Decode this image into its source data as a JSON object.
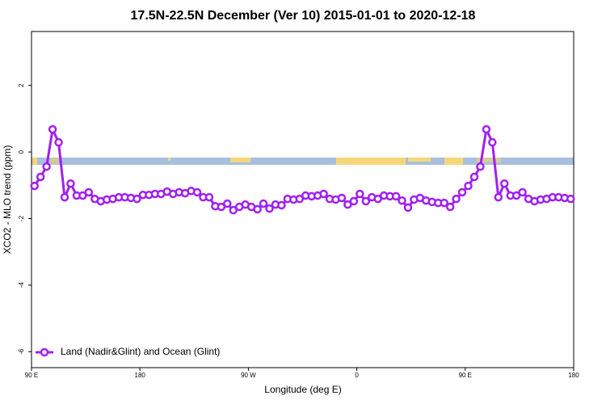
{
  "chart_data": {
    "type": "line",
    "title": "17.5N-22.5N December (Ver 10)   2015-01-01 to 2020-12-18",
    "x_label": "Longitude (deg E)",
    "y_label": "XCO2 - MLO trend (ppm)",
    "xlim": [
      90,
      540
    ],
    "ylim": [
      -6.48,
      3.62
    ],
    "xticks": [
      {
        "value": 90,
        "label": "90 E"
      },
      {
        "value": 180,
        "label": "180"
      },
      {
        "value": 270,
        "label": "90 W"
      },
      {
        "value": 360,
        "label": "0"
      },
      {
        "value": 450,
        "label": "90 E"
      },
      {
        "value": 540,
        "label": "180"
      }
    ],
    "yticks": [
      2,
      0,
      -2,
      -4,
      -6
    ],
    "legend": "bottom-left",
    "x": [
      92.5,
      97.5,
      102.5,
      107.5,
      112.5,
      117.5,
      122.5,
      127.5,
      132.5,
      137.5,
      142.5,
      147.5,
      152.5,
      157.5,
      162.5,
      167.5,
      172.5,
      177.5,
      182.5,
      187.5,
      192.5,
      197.5,
      202.5,
      207.5,
      212.5,
      217.5,
      222.5,
      227.5,
      232.5,
      237.5,
      242.5,
      247.5,
      252.5,
      257.5,
      262.5,
      267.5,
      272.5,
      277.5,
      282.5,
      287.5,
      292.5,
      297.5,
      302.5,
      307.5,
      312.5,
      317.5,
      322.5,
      327.5,
      332.5,
      337.5,
      342.5,
      347.5,
      352.5,
      357.5,
      362.5,
      367.5,
      372.5,
      377.5,
      382.5,
      387.5,
      392.5,
      397.5,
      402.5,
      407.5,
      412.5,
      417.5,
      422.5,
      427.5,
      432.5,
      437.5,
      442.5,
      447.5,
      452.5,
      457.5,
      462.5,
      467.5,
      472.5,
      477.5,
      482.5,
      487.5,
      492.5,
      497.5,
      502.5,
      507.5,
      512.5,
      517.5,
      522.5,
      527.5,
      532.5,
      537.5
    ],
    "series": [
      {
        "name": "Land (Nadir&Glint) and Ocean (Glint)",
        "color": "#a020f0",
        "values": [
          -1.02,
          -0.75,
          -0.44,
          0.68,
          0.29,
          -1.36,
          -0.95,
          -1.31,
          -1.31,
          -1.21,
          -1.41,
          -1.48,
          -1.43,
          -1.41,
          -1.36,
          -1.36,
          -1.38,
          -1.41,
          -1.29,
          -1.29,
          -1.26,
          -1.26,
          -1.19,
          -1.26,
          -1.21,
          -1.24,
          -1.17,
          -1.21,
          -1.36,
          -1.36,
          -1.63,
          -1.65,
          -1.55,
          -1.75,
          -1.65,
          -1.58,
          -1.65,
          -1.72,
          -1.55,
          -1.7,
          -1.58,
          -1.6,
          -1.41,
          -1.43,
          -1.41,
          -1.31,
          -1.33,
          -1.31,
          -1.26,
          -1.41,
          -1.43,
          -1.38,
          -1.58,
          -1.48,
          -1.26,
          -1.48,
          -1.36,
          -1.41,
          -1.31,
          -1.33,
          -1.33,
          -1.46,
          -1.67,
          -1.43,
          -1.38,
          -1.46,
          -1.5,
          -1.53,
          -1.53,
          -1.65,
          -1.41,
          -1.21,
          -1.02,
          -0.75,
          -0.44,
          0.68,
          0.29,
          -1.36,
          -0.95,
          -1.31,
          -1.31,
          -1.21,
          -1.41,
          -1.48,
          -1.43,
          -1.41,
          -1.36,
          -1.36,
          -1.38,
          -1.41
        ]
      }
    ]
  }
}
